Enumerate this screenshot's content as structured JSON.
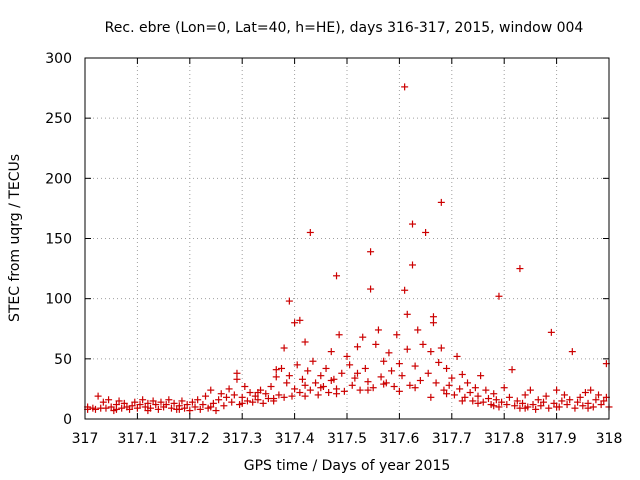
{
  "chart_data": {
    "type": "scatter",
    "title": "Rec. ebre (Lon=0, Lat=40, h=HE), days 316-317, 2015, window 004",
    "xlabel": "GPS time / Days of year 2015",
    "ylabel": "STEC from uqrg / TECUs",
    "xlim": [
      317,
      318
    ],
    "ylim": [
      0,
      300
    ],
    "x_ticks": [
      317,
      317.1,
      317.2,
      317.3,
      317.4,
      317.5,
      317.6,
      317.7,
      317.8,
      317.9,
      318
    ],
    "x_tick_labels": [
      "317",
      "317.1",
      "317.2",
      "317.3",
      "317.4",
      "317.5",
      "317.6",
      "317.7",
      "317.8",
      "317.9",
      "318"
    ],
    "y_ticks": [
      0,
      50,
      100,
      150,
      200,
      250,
      300
    ],
    "y_tick_labels": [
      "0",
      "50",
      "100",
      "150",
      "200",
      "250",
      "300"
    ],
    "grid": true,
    "marker": "+",
    "series": [
      {
        "color": "#cc0000",
        "points": [
          [
            317.005,
            8
          ],
          [
            317.005,
            10
          ],
          [
            317.015,
            9
          ],
          [
            317.02,
            8
          ],
          [
            317.025,
            19
          ],
          [
            317.03,
            9
          ],
          [
            317.035,
            14
          ],
          [
            317.04,
            9
          ],
          [
            317.045,
            16
          ],
          [
            317.05,
            10
          ],
          [
            317.055,
            7
          ],
          [
            317.06,
            12
          ],
          [
            317.065,
            15
          ],
          [
            317.07,
            9
          ],
          [
            317.075,
            13
          ],
          [
            317.08,
            10
          ],
          [
            317.085,
            8
          ],
          [
            317.09,
            11
          ],
          [
            317.095,
            14
          ],
          [
            317.1,
            9
          ],
          [
            317.105,
            12
          ],
          [
            317.11,
            16
          ],
          [
            317.115,
            10
          ],
          [
            317.12,
            13
          ],
          [
            317.125,
            9
          ],
          [
            317.13,
            15
          ],
          [
            317.135,
            12
          ],
          [
            317.14,
            8
          ],
          [
            317.145,
            14
          ],
          [
            317.15,
            10
          ],
          [
            317.155,
            12
          ],
          [
            317.16,
            16
          ],
          [
            317.165,
            9
          ],
          [
            317.17,
            13
          ],
          [
            317.175,
            8
          ],
          [
            317.18,
            11
          ],
          [
            317.185,
            15
          ],
          [
            317.19,
            9
          ],
          [
            317.195,
            12
          ],
          [
            317.2,
            7
          ],
          [
            317.205,
            14
          ],
          [
            317.21,
            10
          ],
          [
            317.215,
            16
          ],
          [
            317.22,
            8
          ],
          [
            317.225,
            12
          ],
          [
            317.23,
            19
          ],
          [
            317.235,
            9
          ],
          [
            317.24,
            24
          ],
          [
            317.245,
            13
          ],
          [
            317.25,
            7
          ],
          [
            317.255,
            16
          ],
          [
            317.26,
            21
          ],
          [
            317.265,
            11
          ],
          [
            317.27,
            18
          ],
          [
            317.275,
            25
          ],
          [
            317.28,
            14
          ],
          [
            317.285,
            20
          ],
          [
            317.29,
            38
          ],
          [
            317.29,
            33
          ],
          [
            317.295,
            12
          ],
          [
            317.3,
            18
          ],
          [
            317.305,
            27
          ],
          [
            317.31,
            15
          ],
          [
            317.315,
            22
          ],
          [
            317.32,
            14
          ],
          [
            317.325,
            19
          ],
          [
            317.33,
            16
          ],
          [
            317.335,
            24
          ],
          [
            317.34,
            13
          ],
          [
            317.345,
            21
          ],
          [
            317.35,
            17
          ],
          [
            317.355,
            27
          ],
          [
            317.36,
            15
          ],
          [
            317.365,
            41
          ],
          [
            317.365,
            35
          ],
          [
            317.37,
            20
          ],
          [
            317.375,
            42
          ],
          [
            317.38,
            18
          ],
          [
            317.38,
            59
          ],
          [
            317.385,
            30
          ],
          [
            317.39,
            98
          ],
          [
            317.39,
            36
          ],
          [
            317.395,
            19
          ],
          [
            317.4,
            25
          ],
          [
            317.4,
            80
          ],
          [
            317.405,
            45
          ],
          [
            317.41,
            22
          ],
          [
            317.41,
            82
          ],
          [
            317.415,
            33
          ],
          [
            317.42,
            64
          ],
          [
            317.42,
            28
          ],
          [
            317.425,
            40
          ],
          [
            317.43,
            155
          ],
          [
            317.43,
            24
          ],
          [
            317.435,
            48
          ],
          [
            317.44,
            30
          ],
          [
            317.445,
            20
          ],
          [
            317.45,
            36
          ],
          [
            317.455,
            27
          ],
          [
            317.46,
            42
          ],
          [
            317.465,
            22
          ],
          [
            317.47,
            56
          ],
          [
            317.475,
            33
          ],
          [
            317.48,
            119
          ],
          [
            317.48,
            25
          ],
          [
            317.485,
            70
          ],
          [
            317.49,
            38
          ],
          [
            317.495,
            23
          ],
          [
            317.5,
            52
          ],
          [
            317.505,
            45
          ],
          [
            317.51,
            28
          ],
          [
            317.515,
            34
          ],
          [
            317.52,
            60
          ],
          [
            317.525,
            24
          ],
          [
            317.53,
            68
          ],
          [
            317.535,
            42
          ],
          [
            317.54,
            31
          ],
          [
            317.545,
            139
          ],
          [
            317.545,
            108
          ],
          [
            317.55,
            26
          ],
          [
            317.555,
            62
          ],
          [
            317.56,
            74
          ],
          [
            317.565,
            35
          ],
          [
            317.57,
            48
          ],
          [
            317.575,
            30
          ],
          [
            317.58,
            55
          ],
          [
            317.585,
            40
          ],
          [
            317.59,
            27
          ],
          [
            317.595,
            70
          ],
          [
            317.6,
            46
          ],
          [
            317.605,
            36
          ],
          [
            317.61,
            276
          ],
          [
            317.61,
            107
          ],
          [
            317.615,
            87
          ],
          [
            317.615,
            58
          ],
          [
            317.62,
            28
          ],
          [
            317.625,
            162
          ],
          [
            317.625,
            128
          ],
          [
            317.63,
            44
          ],
          [
            317.635,
            74
          ],
          [
            317.64,
            32
          ],
          [
            317.645,
            62
          ],
          [
            317.65,
            155
          ],
          [
            317.655,
            38
          ],
          [
            317.66,
            56
          ],
          [
            317.665,
            85
          ],
          [
            317.665,
            80
          ],
          [
            317.67,
            30
          ],
          [
            317.675,
            47
          ],
          [
            317.68,
            180
          ],
          [
            317.68,
            59
          ],
          [
            317.685,
            24
          ],
          [
            317.69,
            42
          ],
          [
            317.695,
            28
          ],
          [
            317.7,
            34
          ],
          [
            317.705,
            20
          ],
          [
            317.71,
            52
          ],
          [
            317.715,
            25
          ],
          [
            317.72,
            37
          ],
          [
            317.725,
            18
          ],
          [
            317.73,
            30
          ],
          [
            317.735,
            22
          ],
          [
            317.74,
            15
          ],
          [
            317.745,
            26
          ],
          [
            317.75,
            19
          ],
          [
            317.755,
            36
          ],
          [
            317.76,
            14
          ],
          [
            317.765,
            24
          ],
          [
            317.77,
            17
          ],
          [
            317.775,
            12
          ],
          [
            317.78,
            21
          ],
          [
            317.785,
            16
          ],
          [
            317.79,
            102
          ],
          [
            317.79,
            10
          ],
          [
            317.795,
            14
          ],
          [
            317.8,
            26
          ],
          [
            317.805,
            12
          ],
          [
            317.81,
            18
          ],
          [
            317.815,
            41
          ],
          [
            317.82,
            11
          ],
          [
            317.825,
            15
          ],
          [
            317.83,
            125
          ],
          [
            317.83,
            9
          ],
          [
            317.835,
            13
          ],
          [
            317.84,
            20
          ],
          [
            317.845,
            10
          ],
          [
            317.85,
            24
          ],
          [
            317.855,
            12
          ],
          [
            317.86,
            8
          ],
          [
            317.865,
            16
          ],
          [
            317.87,
            11
          ],
          [
            317.875,
            14
          ],
          [
            317.88,
            19
          ],
          [
            317.885,
            9
          ],
          [
            317.89,
            72
          ],
          [
            317.895,
            13
          ],
          [
            317.9,
            24
          ],
          [
            317.905,
            10
          ],
          [
            317.91,
            15
          ],
          [
            317.915,
            20
          ],
          [
            317.92,
            12
          ],
          [
            317.925,
            16
          ],
          [
            317.93,
            56
          ],
          [
            317.935,
            9
          ],
          [
            317.94,
            14
          ],
          [
            317.945,
            18
          ],
          [
            317.95,
            11
          ],
          [
            317.955,
            22
          ],
          [
            317.96,
            13
          ],
          [
            317.965,
            24
          ],
          [
            317.97,
            10
          ],
          [
            317.975,
            16
          ],
          [
            317.98,
            20
          ],
          [
            317.985,
            12
          ],
          [
            317.99,
            15
          ],
          [
            317.995,
            46
          ],
          [
            317.995,
            18
          ],
          [
            318.0,
            10
          ],
          [
            317.06,
            8
          ],
          [
            317.12,
            7
          ],
          [
            317.18,
            8
          ],
          [
            317.24,
            10
          ],
          [
            317.3,
            13
          ],
          [
            317.36,
            17
          ],
          [
            317.42,
            19
          ],
          [
            317.48,
            21
          ],
          [
            317.54,
            24
          ],
          [
            317.6,
            23
          ],
          [
            317.66,
            18
          ],
          [
            317.72,
            15
          ],
          [
            317.78,
            11
          ],
          [
            317.84,
            9
          ],
          [
            317.9,
            10
          ],
          [
            317.96,
            9
          ],
          [
            317.33,
            22
          ],
          [
            317.47,
            32
          ],
          [
            317.52,
            38
          ],
          [
            317.57,
            29
          ],
          [
            317.63,
            26
          ],
          [
            317.69,
            21
          ],
          [
            317.75,
            13
          ],
          [
            317.45,
            26
          ]
        ]
      }
    ]
  }
}
